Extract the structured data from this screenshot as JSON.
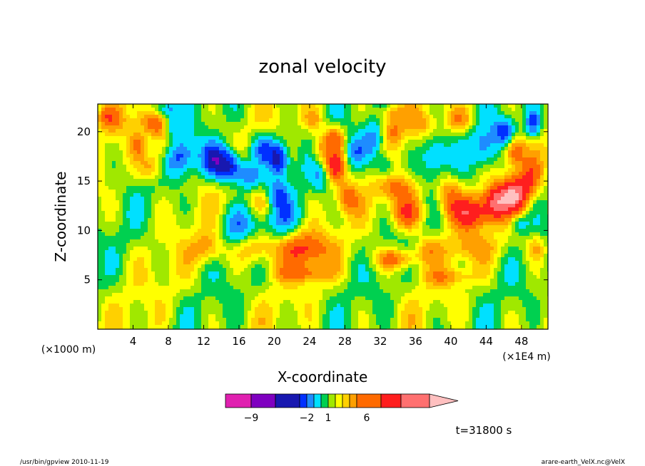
{
  "chart_data": {
    "type": "heatmap",
    "title": "zonal velocity",
    "xlabel": "X-coordinate",
    "ylabel": "Z-coordinate",
    "x_unit_left": "(×1000 m)",
    "x_unit_right": "(×1E4 m)",
    "x_ticks": [
      4,
      8,
      12,
      16,
      20,
      24,
      28,
      32,
      36,
      40,
      44,
      48
    ],
    "y_ticks": [
      5,
      10,
      15,
      20
    ],
    "xlim": [
      0,
      51
    ],
    "ylim": [
      0,
      22.8
    ],
    "colorbar": {
      "colors": [
        "#e020b0",
        "#7f00c0",
        "#1818b0",
        "#0030ff",
        "#1e8cff",
        "#00e0ff",
        "#00d050",
        "#a0e800",
        "#ffff00",
        "#ffd000",
        "#ffa000",
        "#ff6a00",
        "#ff1e1e",
        "#ff7070",
        "#ffc0c0"
      ],
      "labels": [
        {
          "text": "−9",
          "index": 2
        },
        {
          "text": "−2",
          "index": 5
        },
        {
          "text": "1",
          "index": 8
        },
        {
          "text": "6",
          "index": 11
        }
      ]
    },
    "annotation": "t=31800 s"
  },
  "footer": {
    "left": "/usr/bin/gpview   2010-11-19",
    "right": "arare-earth_VelX.nc@VelX"
  }
}
